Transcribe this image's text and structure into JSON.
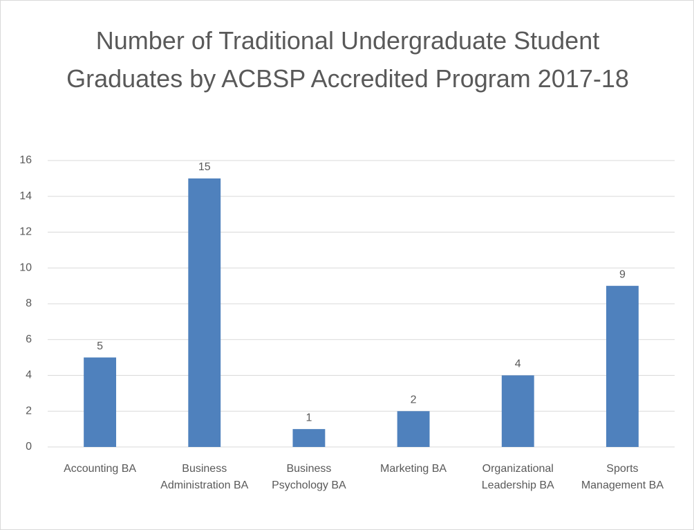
{
  "chart_data": {
    "type": "bar",
    "title": "Number of Traditional Undergraduate Student Graduates by ACBSP Accredited Program 2017-18",
    "categories": [
      "Accounting BA",
      "Business Administration BA",
      "Business Psychology BA",
      "Marketing BA",
      "Organizational Leadership BA",
      "Sports Management BA"
    ],
    "values": [
      5,
      15,
      1,
      2,
      4,
      9
    ],
    "color": "#4f81bd",
    "ylim": [
      0,
      16
    ],
    "yticks": [
      0,
      2,
      4,
      6,
      8,
      10,
      12,
      14,
      16
    ],
    "grid": true
  }
}
